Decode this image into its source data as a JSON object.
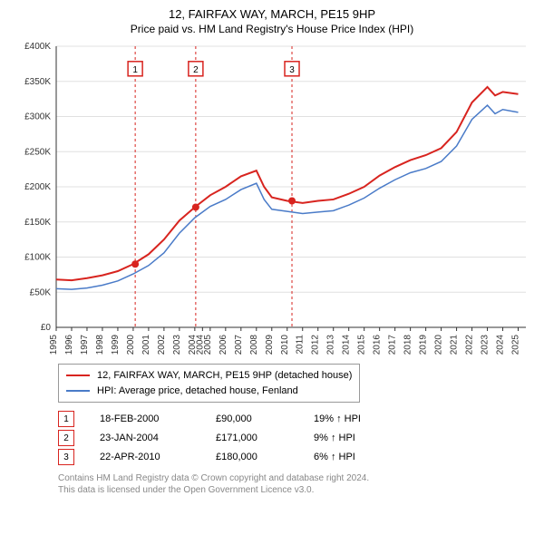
{
  "title": "12, FAIRFAX WAY, MARCH, PE15 9HP",
  "subtitle": "Price paid vs. HM Land Registry's House Price Index (HPI)",
  "chart": {
    "type": "line",
    "background_color": "#ffffff",
    "grid_color": "#e0e0e0",
    "axis_color": "#333333",
    "tick_font_size": 10,
    "y": {
      "min": 0,
      "max": 400000,
      "ticks": [
        0,
        50000,
        100000,
        150000,
        200000,
        250000,
        300000,
        350000,
        400000
      ],
      "tick_labels": [
        "£0",
        "£50K",
        "£100K",
        "£150K",
        "£200K",
        "£250K",
        "£300K",
        "£350K",
        "£400K"
      ]
    },
    "x": {
      "min": 1995,
      "max": 2025.5,
      "ticks": [
        1995,
        1996,
        1997,
        1998,
        1999,
        2000,
        2001,
        2002,
        2003,
        2004,
        2004.5,
        2005,
        2006,
        2007,
        2008,
        2009,
        2010,
        2011,
        2012,
        2013,
        2014,
        2015,
        2016,
        2017,
        2018,
        2019,
        2020,
        2021,
        2022,
        2023,
        2024,
        2025
      ],
      "tick_labels": [
        "1995",
        "1996",
        "1997",
        "1998",
        "1999",
        "2000",
        "2001",
        "2002",
        "2003",
        "2004",
        "2004",
        "2005",
        "2006",
        "2007",
        "2008",
        "2009",
        "2010",
        "2011",
        "2012",
        "2013",
        "2014",
        "2015",
        "2016",
        "2017",
        "2018",
        "2019",
        "2020",
        "2021",
        "2022",
        "2023",
        "2024",
        "2025"
      ]
    },
    "series": [
      {
        "name": "12, FAIRFAX WAY, MARCH, PE15 9HP (detached house)",
        "color": "#d8241f",
        "line_width": 2,
        "points": [
          [
            1995,
            68000
          ],
          [
            1996,
            67000
          ],
          [
            1997,
            70000
          ],
          [
            1998,
            74000
          ],
          [
            1999,
            80000
          ],
          [
            2000,
            90000
          ],
          [
            2001,
            104000
          ],
          [
            2002,
            125000
          ],
          [
            2003,
            152000
          ],
          [
            2004,
            171000
          ],
          [
            2005,
            188000
          ],
          [
            2006,
            200000
          ],
          [
            2007,
            215000
          ],
          [
            2008,
            223000
          ],
          [
            2008.5,
            200000
          ],
          [
            2009,
            185000
          ],
          [
            2010,
            180000
          ],
          [
            2011,
            177000
          ],
          [
            2012,
            180000
          ],
          [
            2013,
            182000
          ],
          [
            2014,
            190000
          ],
          [
            2015,
            200000
          ],
          [
            2016,
            216000
          ],
          [
            2017,
            228000
          ],
          [
            2018,
            238000
          ],
          [
            2019,
            245000
          ],
          [
            2020,
            255000
          ],
          [
            2021,
            278000
          ],
          [
            2022,
            320000
          ],
          [
            2023,
            342000
          ],
          [
            2023.5,
            330000
          ],
          [
            2024,
            335000
          ],
          [
            2025,
            332000
          ]
        ]
      },
      {
        "name": "HPI: Average price, detached house, Fenland",
        "color": "#4a7bc8",
        "line_width": 1.5,
        "points": [
          [
            1995,
            55000
          ],
          [
            1996,
            54000
          ],
          [
            1997,
            56000
          ],
          [
            1998,
            60000
          ],
          [
            1999,
            66000
          ],
          [
            2000,
            76000
          ],
          [
            2001,
            88000
          ],
          [
            2002,
            106000
          ],
          [
            2003,
            134000
          ],
          [
            2004,
            156000
          ],
          [
            2005,
            172000
          ],
          [
            2006,
            182000
          ],
          [
            2007,
            196000
          ],
          [
            2008,
            205000
          ],
          [
            2008.5,
            182000
          ],
          [
            2009,
            168000
          ],
          [
            2010,
            165000
          ],
          [
            2011,
            162000
          ],
          [
            2012,
            164000
          ],
          [
            2013,
            166000
          ],
          [
            2014,
            174000
          ],
          [
            2015,
            184000
          ],
          [
            2016,
            198000
          ],
          [
            2017,
            210000
          ],
          [
            2018,
            220000
          ],
          [
            2019,
            226000
          ],
          [
            2020,
            236000
          ],
          [
            2021,
            258000
          ],
          [
            2022,
            296000
          ],
          [
            2023,
            316000
          ],
          [
            2023.5,
            304000
          ],
          [
            2024,
            310000
          ],
          [
            2025,
            306000
          ]
        ]
      }
    ],
    "sale_markers": {
      "color": "#d8241f",
      "vertical_line_dash": "3,3",
      "points": [
        {
          "n": "1",
          "x": 2000.13,
          "y": 90000
        },
        {
          "n": "2",
          "x": 2004.06,
          "y": 171000
        },
        {
          "n": "3",
          "x": 2010.31,
          "y": 180000
        }
      ],
      "badge_y": 368000
    }
  },
  "legend": [
    {
      "color": "#d8241f",
      "label": "12, FAIRFAX WAY, MARCH, PE15 9HP (detached house)"
    },
    {
      "color": "#4a7bc8",
      "label": "HPI: Average price, detached house, Fenland"
    }
  ],
  "sales": [
    {
      "n": "1",
      "date": "18-FEB-2000",
      "price": "£90,000",
      "delta": "19% ↑ HPI",
      "badge_color": "#d8241f"
    },
    {
      "n": "2",
      "date": "23-JAN-2004",
      "price": "£171,000",
      "delta": "9% ↑ HPI",
      "badge_color": "#d8241f"
    },
    {
      "n": "3",
      "date": "22-APR-2010",
      "price": "£180,000",
      "delta": "6% ↑ HPI",
      "badge_color": "#d8241f"
    }
  ],
  "footer1": "Contains HM Land Registry data © Crown copyright and database right 2024.",
  "footer2": "This data is licensed under the Open Government Licence v3.0."
}
